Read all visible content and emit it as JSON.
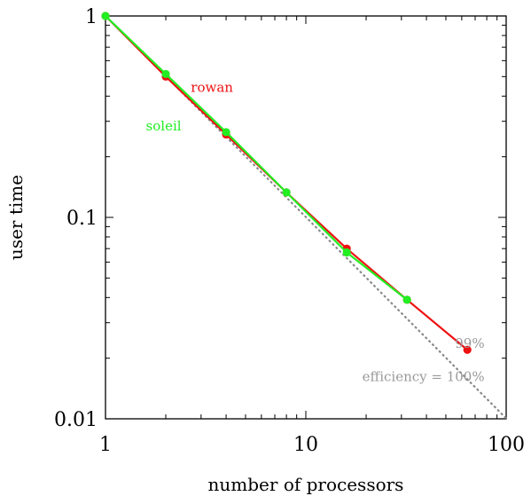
{
  "chart_data": {
    "type": "line",
    "title": "",
    "xlabel": "number of processors",
    "ylabel": "user time",
    "x_scale": "log",
    "y_scale": "log",
    "xlim": [
      1,
      100
    ],
    "ylim": [
      0.01,
      1
    ],
    "x_ticks": [
      {
        "value": 1,
        "label": "1"
      },
      {
        "value": 10,
        "label": "10"
      },
      {
        "value": 100,
        "label": "100"
      }
    ],
    "y_ticks": [
      {
        "value": 0.01,
        "label": "0.01"
      },
      {
        "value": 0.1,
        "label": "0.1"
      },
      {
        "value": 1,
        "label": "1"
      }
    ],
    "grid": false,
    "series": [
      {
        "name": "rowan",
        "color": "#ee1111",
        "label_at": {
          "x": 3.4,
          "y": 0.42
        },
        "points": [
          {
            "x": 1,
            "y": 1.0
          },
          {
            "x": 2,
            "y": 0.5
          },
          {
            "x": 4,
            "y": 0.258
          },
          {
            "x": 8,
            "y": 0.133
          },
          {
            "x": 16,
            "y": 0.07
          },
          {
            "x": 32,
            "y": 0.039
          },
          {
            "x": 64,
            "y": 0.022
          }
        ]
      },
      {
        "name": "soleil",
        "color": "#22ee22",
        "label_at": {
          "x": 1.95,
          "y": 0.27
        },
        "points": [
          {
            "x": 1,
            "y": 1.0
          },
          {
            "x": 2,
            "y": 0.515
          },
          {
            "x": 4,
            "y": 0.265
          },
          {
            "x": 8,
            "y": 0.133
          },
          {
            "x": 16,
            "y": 0.067
          },
          {
            "x": 32,
            "y": 0.039
          }
        ]
      }
    ],
    "reference_lines": [
      {
        "label": "efficiency = 100%",
        "efficiency": 1.0,
        "color": "#888888",
        "label_at": {
          "x": 78,
          "y": 0.0154
        }
      },
      {
        "label": "99%",
        "efficiency": 0.99,
        "color": "#888888",
        "label_at": {
          "x": 78,
          "y": 0.0225
        }
      }
    ]
  }
}
